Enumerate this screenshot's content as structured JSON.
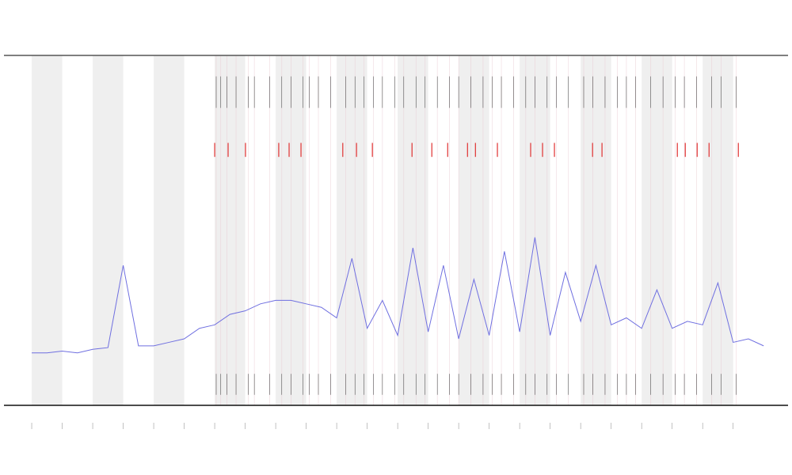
{
  "chart_data": {
    "type": "line",
    "x": [
      0,
      0.5,
      1,
      1.5,
      2,
      2.5,
      3,
      3.5,
      4,
      4.5,
      5,
      5.5,
      6,
      6.5,
      7,
      7.5,
      8,
      8.5,
      9,
      9.5,
      10,
      10.5,
      11,
      11.5,
      12,
      12.5,
      13,
      13.5,
      14,
      14.5,
      15,
      15.5,
      16,
      16.5,
      17,
      17.5,
      18,
      18.5,
      19,
      19.5,
      20,
      20.5,
      21,
      21.5,
      22,
      22.5,
      23,
      23.5,
      24
    ],
    "series": [
      {
        "color": "#6f6fe0",
        "values": [
          0.15,
          0.15,
          0.155,
          0.15,
          0.16,
          0.165,
          0.4,
          0.17,
          0.17,
          0.18,
          0.19,
          0.22,
          0.23,
          0.26,
          0.27,
          0.29,
          0.3,
          0.3,
          0.29,
          0.28,
          0.25,
          0.42,
          0.22,
          0.3,
          0.2,
          0.45,
          0.21,
          0.4,
          0.19,
          0.36,
          0.2,
          0.44,
          0.21,
          0.48,
          0.2,
          0.38,
          0.24,
          0.4,
          0.23,
          0.25,
          0.22,
          0.33,
          0.22,
          0.24,
          0.23,
          0.35,
          0.18,
          0.19,
          0.17
        ]
      }
    ],
    "events": [
      6.05,
      6.2,
      6.4,
      6.7,
      7.1,
      7.3,
      7.8,
      8.2,
      8.5,
      8.9,
      9.1,
      9.4,
      9.8,
      10.3,
      10.6,
      10.9,
      11.2,
      11.5,
      11.9,
      12.2,
      12.6,
      12.9,
      13.3,
      13.7,
      14.0,
      14.4,
      14.8,
      15.1,
      15.4,
      15.8,
      16.2,
      16.5,
      16.9,
      17.2,
      17.6,
      18.1,
      18.4,
      18.8,
      19.2,
      19.5,
      19.8,
      20.3,
      20.7,
      21.1,
      21.4,
      21.8,
      22.3,
      22.6,
      23.1
    ],
    "event_color": "#333333",
    "red_events": [
      6.0,
      6.44,
      7.01,
      8.1,
      8.44,
      8.83,
      10.2,
      10.65,
      11.17,
      12.47,
      13.12,
      13.64,
      14.29,
      14.55,
      15.27,
      16.36,
      16.75,
      17.14,
      18.39,
      18.7,
      21.17,
      21.43,
      21.82,
      22.21,
      23.17
    ],
    "red_color": "#e03030",
    "shaded": [
      [
        0,
        1
      ],
      [
        2,
        3
      ],
      [
        4,
        5
      ],
      [
        6,
        7
      ],
      [
        8,
        9
      ],
      [
        10,
        11
      ],
      [
        12,
        13
      ],
      [
        14,
        15
      ],
      [
        16,
        17
      ],
      [
        18,
        19
      ],
      [
        20,
        21
      ],
      [
        22,
        23
      ]
    ],
    "shade_color": "#efefef",
    "xlim": [
      -0.91,
      24.8
    ],
    "xticks": [
      0,
      1,
      2,
      3,
      4,
      5,
      6,
      7,
      8,
      9,
      10,
      11,
      12,
      13,
      14,
      15,
      16,
      17,
      18,
      19,
      20,
      21,
      22,
      23
    ],
    "ylim": [
      0,
      1
    ]
  }
}
